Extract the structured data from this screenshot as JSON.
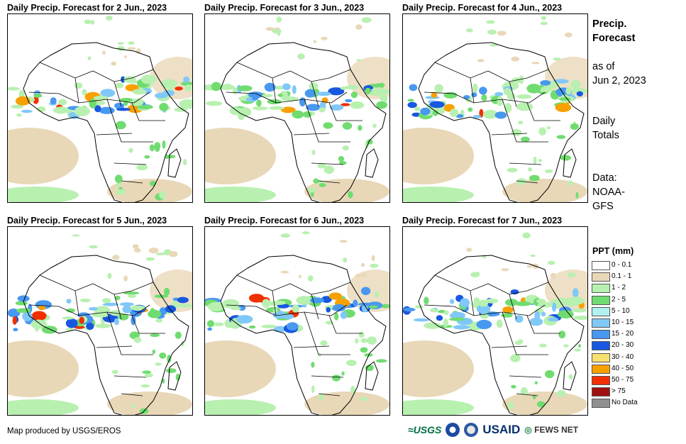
{
  "panels": [
    {
      "title": "Daily Precip. Forecast for 2 Jun., 2023"
    },
    {
      "title": "Daily Precip. Forecast for 3 Jun., 2023"
    },
    {
      "title": "Daily Precip. Forecast for 4 Jun., 2023"
    },
    {
      "title": "Daily Precip. Forecast for 5 Jun., 2023"
    },
    {
      "title": "Daily Precip. Forecast for 6 Jun., 2023"
    },
    {
      "title": "Daily Precip. Forecast for 7 Jun., 2023"
    }
  ],
  "sidebar": {
    "heading_line1": "Precip.",
    "heading_line2": "Forecast",
    "asof_line1": "as of",
    "asof_line2": "Jun 2, 2023",
    "totals_line1": "Daily",
    "totals_line2": "Totals",
    "data_line1": "Data:",
    "data_line2": "NOAA-",
    "data_line3": "GFS"
  },
  "legend": {
    "title": "PPT (mm)",
    "items": [
      {
        "label": "0 - 0.1",
        "color": "#ffffff"
      },
      {
        "label": "0.1 - 1",
        "color": "#e8d8b8"
      },
      {
        "label": "1 - 2",
        "color": "#b8f0b0"
      },
      {
        "label": "2 - 5",
        "color": "#70dc70"
      },
      {
        "label": "5 - 10",
        "color": "#b0f0f0"
      },
      {
        "label": "10 - 15",
        "color": "#80c8f8"
      },
      {
        "label": "15 - 20",
        "color": "#4898f0"
      },
      {
        "label": "20 - 30",
        "color": "#1858e0"
      },
      {
        "label": "30 - 40",
        "color": "#f8e070"
      },
      {
        "label": "40 - 50",
        "color": "#f8a000"
      },
      {
        "label": "50 - 75",
        "color": "#f03000"
      },
      {
        "label": "> 75",
        "color": "#a01010"
      },
      {
        "label": "No Data",
        "color": "#909090"
      }
    ]
  },
  "footer": {
    "credit": "Map produced by USGS/EROS",
    "logo_usgs": "USGS",
    "logo_usaid": "USAID",
    "logo_fews": "FEWS NET"
  }
}
